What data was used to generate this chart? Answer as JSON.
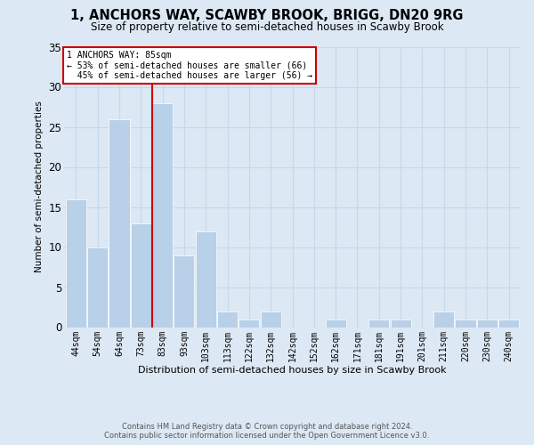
{
  "title": "1, ANCHORS WAY, SCAWBY BROOK, BRIGG, DN20 9RG",
  "subtitle": "Size of property relative to semi-detached houses in Scawby Brook",
  "xlabel": "Distribution of semi-detached houses by size in Scawby Brook",
  "ylabel": "Number of semi-detached properties",
  "property_label": "1 ANCHORS WAY: 85sqm",
  "pct_smaller": 53,
  "count_smaller": 66,
  "pct_larger": 45,
  "count_larger": 56,
  "bin_labels": [
    "44sqm",
    "54sqm",
    "64sqm",
    "73sqm",
    "83sqm",
    "93sqm",
    "103sqm",
    "113sqm",
    "122sqm",
    "132sqm",
    "142sqm",
    "152sqm",
    "162sqm",
    "171sqm",
    "181sqm",
    "191sqm",
    "201sqm",
    "211sqm",
    "220sqm",
    "230sqm",
    "240sqm"
  ],
  "bar_heights": [
    16,
    10,
    26,
    13,
    28,
    9,
    12,
    2,
    1,
    2,
    0,
    0,
    1,
    0,
    1,
    1,
    0,
    2,
    1,
    1,
    1
  ],
  "bar_color": "#b8d0e8",
  "grid_color": "#c8d8e8",
  "vline_color": "#cc0000",
  "box_edge_color": "#cc0000",
  "box_face_color": "#ffffff",
  "fig_bg_color": "#dce8f4",
  "plot_bg_color": "#dce8f4",
  "ylim": [
    0,
    35
  ],
  "yticks": [
    0,
    5,
    10,
    15,
    20,
    25,
    30,
    35
  ],
  "vline_bin_idx": 4,
  "footer_line1": "Contains HM Land Registry data © Crown copyright and database right 2024.",
  "footer_line2": "Contains public sector information licensed under the Open Government Licence v3.0."
}
